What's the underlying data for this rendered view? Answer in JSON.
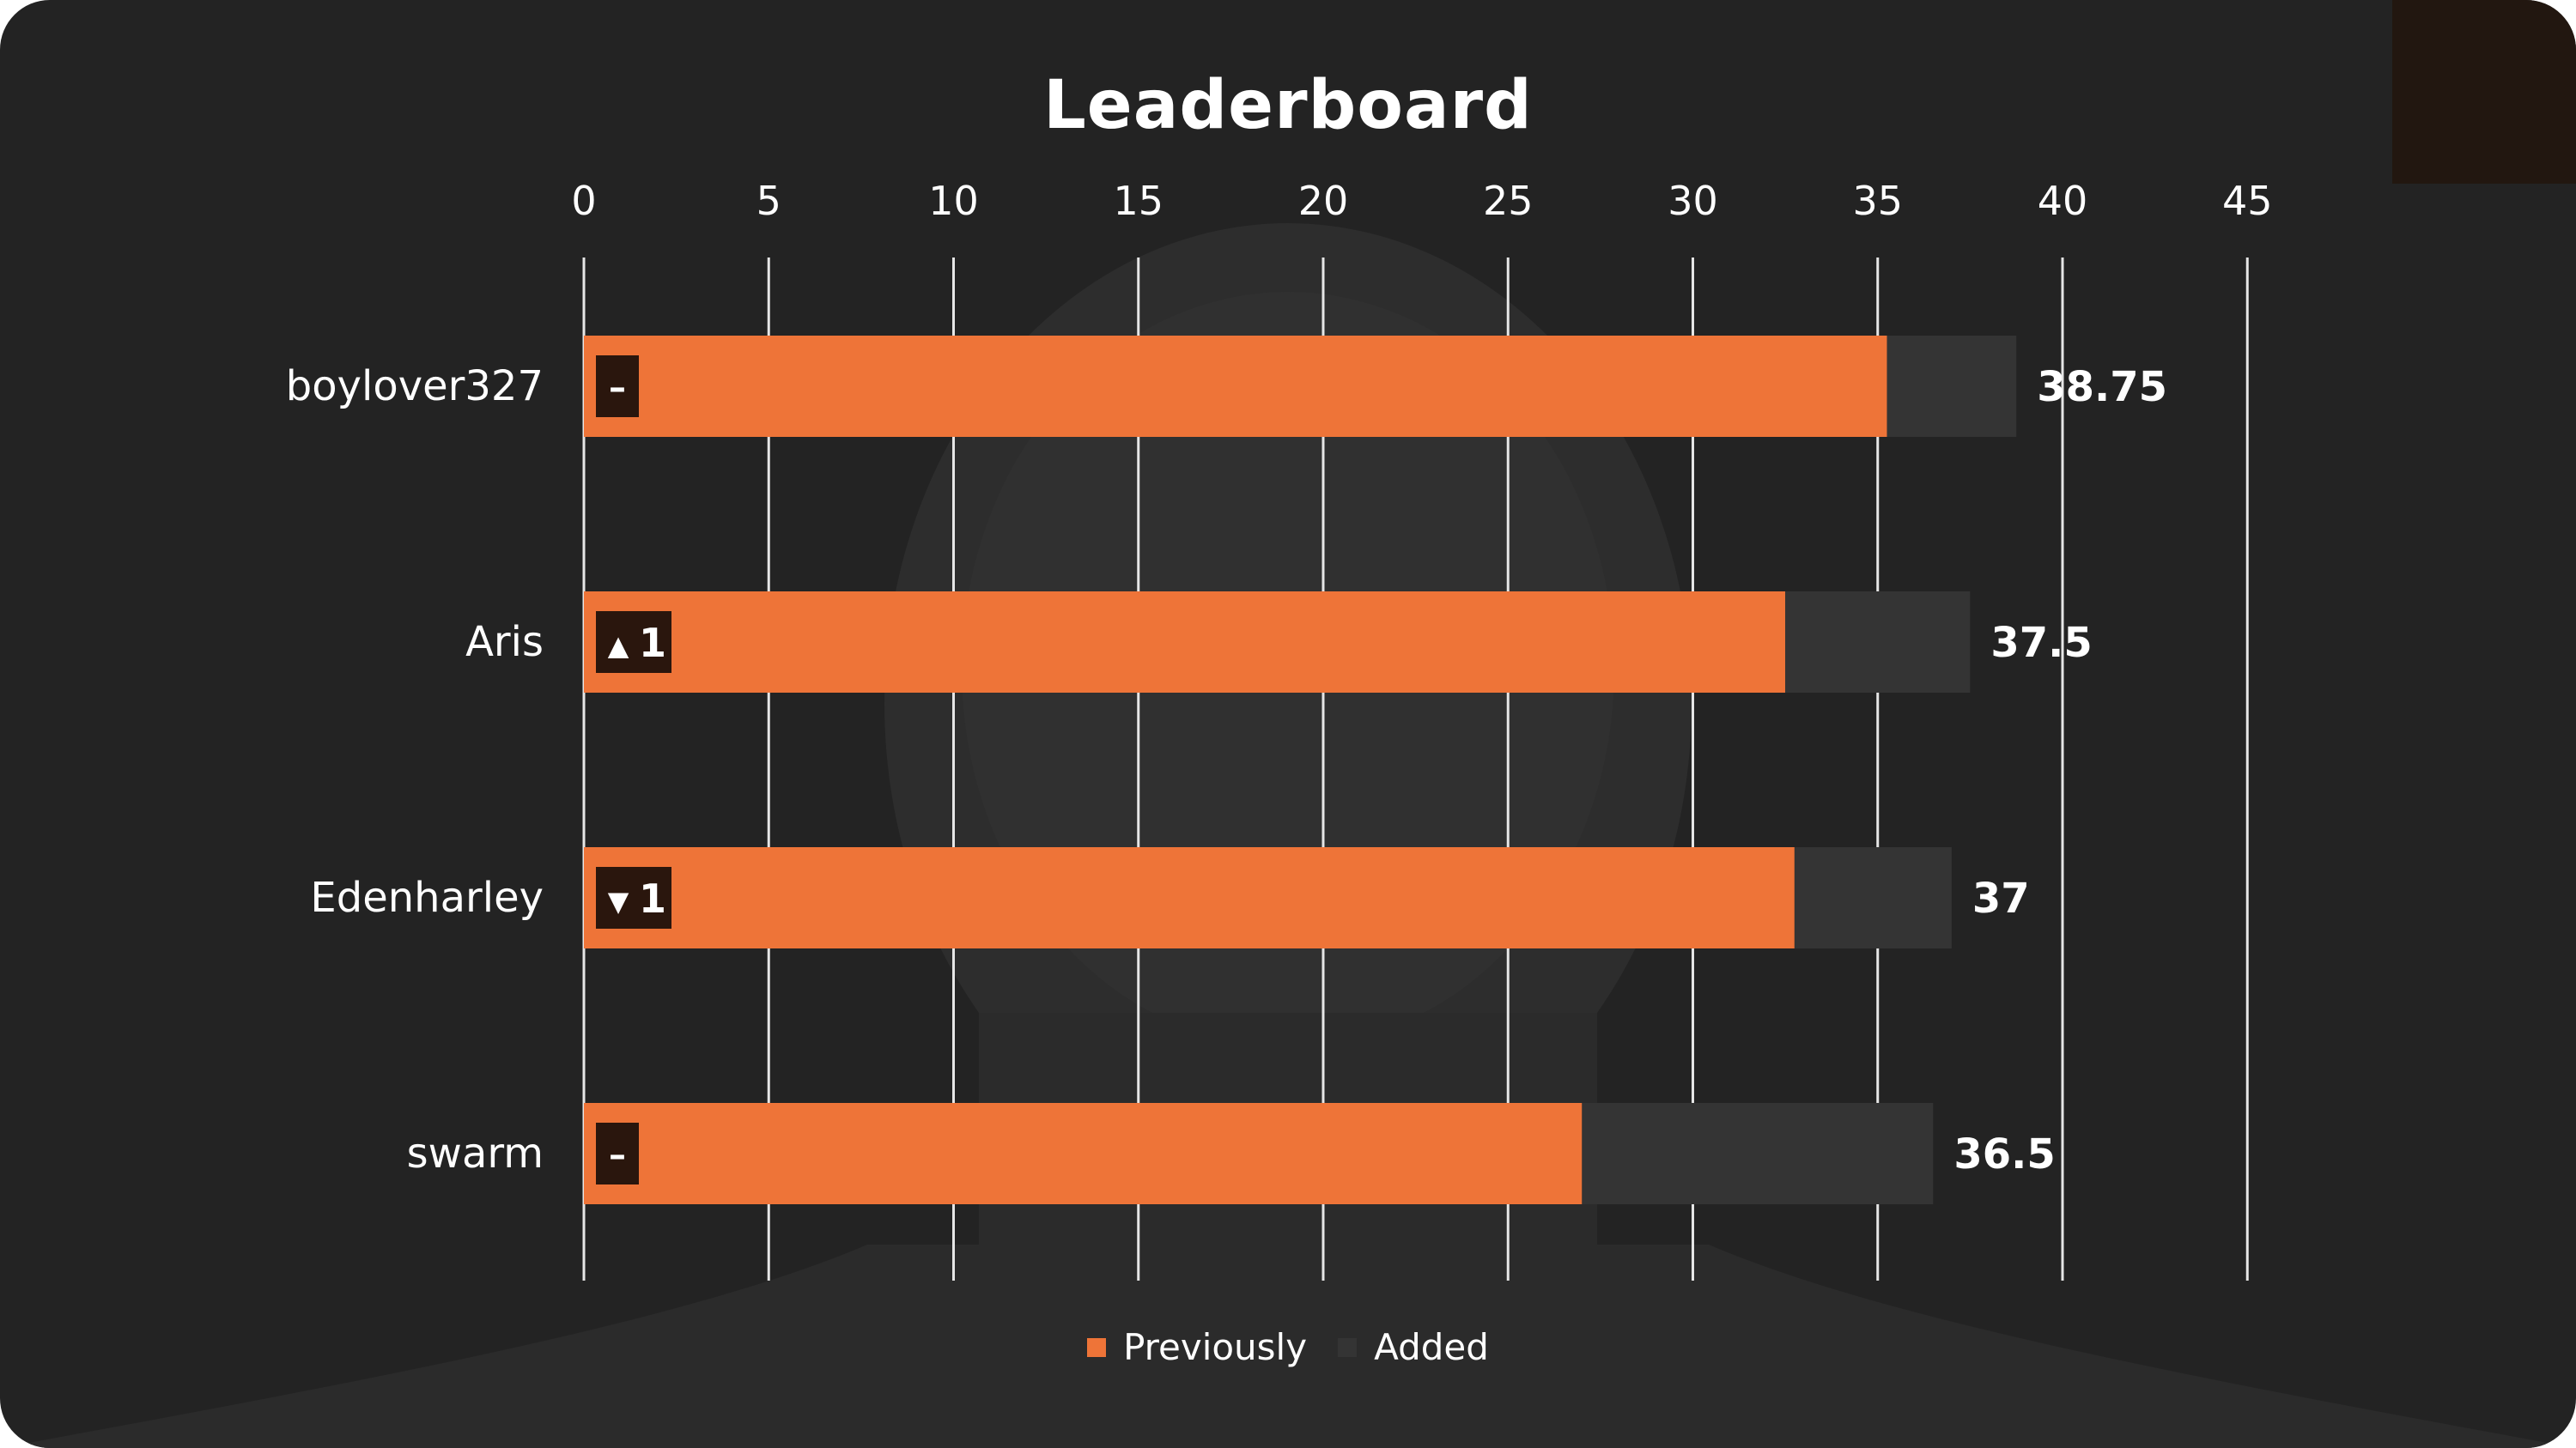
{
  "colors": {
    "background": "#232323",
    "previously": "#ee7438",
    "added": "#343434",
    "grid": "#e6e6e6",
    "text": "#ffffff",
    "badge": "#2a160d"
  },
  "chart_data": {
    "type": "bar",
    "orientation": "horizontal",
    "stacked": true,
    "title": "Leaderboard",
    "xlim": [
      0,
      45
    ],
    "x_ticks": [
      0,
      5,
      10,
      15,
      20,
      25,
      30,
      35,
      40,
      45
    ],
    "grid": true,
    "legend_position": "bottom-center",
    "categories": [
      "boylover327",
      "Aris",
      "Edenharley",
      "swarm"
    ],
    "series": [
      {
        "name": "Previously",
        "values": [
          35.25,
          32.5,
          32.75,
          27
        ]
      },
      {
        "name": "Added",
        "values": [
          3.5,
          5,
          4.25,
          9.5
        ]
      }
    ],
    "totals": [
      "38.75",
      "37.5",
      "37",
      "36.5"
    ],
    "rank_changes": [
      {
        "symbol": "–",
        "text": ""
      },
      {
        "symbol": "▲",
        "text": "1"
      },
      {
        "symbol": "▼",
        "text": "1"
      },
      {
        "symbol": "–",
        "text": ""
      }
    ]
  }
}
